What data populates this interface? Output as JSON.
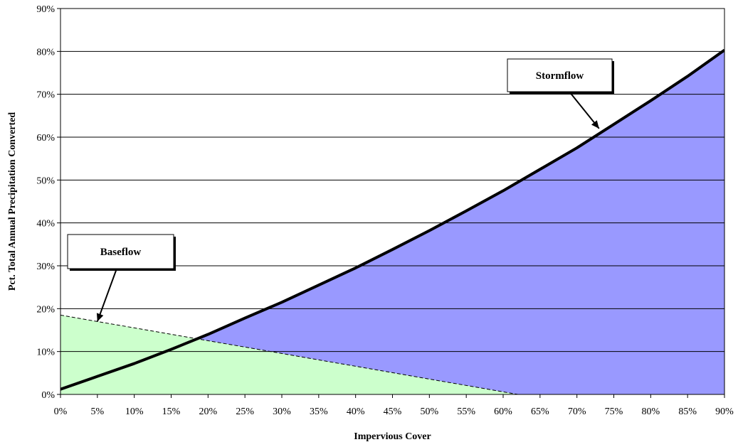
{
  "chart_data": {
    "type": "area",
    "xlabel": "Impervious Cover",
    "ylabel": "Pct. Total Annual Precipitation Converted",
    "x_ticks": [
      "0%",
      "5%",
      "10%",
      "15%",
      "20%",
      "25%",
      "30%",
      "35%",
      "40%",
      "45%",
      "50%",
      "55%",
      "60%",
      "65%",
      "70%",
      "75%",
      "80%",
      "85%",
      "90%"
    ],
    "y_ticks": [
      "0%",
      "10%",
      "20%",
      "30%",
      "40%",
      "50%",
      "60%",
      "70%",
      "80%",
      "90%"
    ],
    "xlim": [
      0,
      90
    ],
    "ylim": [
      0,
      90
    ],
    "grid": "horizontal",
    "series": [
      {
        "name": "Stormflow",
        "fill": "#9999ff",
        "line": "solid-thick",
        "x": [
          0,
          5,
          10,
          15,
          20,
          25,
          30,
          35,
          40,
          45,
          50,
          55,
          60,
          65,
          70,
          75,
          80,
          85,
          90
        ],
        "values": [
          1.2,
          4.2,
          7.2,
          10.5,
          14.0,
          17.8,
          21.5,
          25.5,
          29.5,
          33.8,
          38.2,
          42.8,
          47.5,
          52.5,
          57.5,
          63.0,
          68.5,
          74.2,
          80.3
        ]
      },
      {
        "name": "Baseflow",
        "fill": "#ccffcc",
        "line": "dashed-thin",
        "x": [
          0,
          62
        ],
        "values": [
          18.5,
          0
        ]
      }
    ],
    "annotations": [
      {
        "text": "Stormflow",
        "points_to": [
          73,
          62
        ]
      },
      {
        "text": "Baseflow",
        "points_to": [
          5,
          17
        ]
      }
    ]
  }
}
